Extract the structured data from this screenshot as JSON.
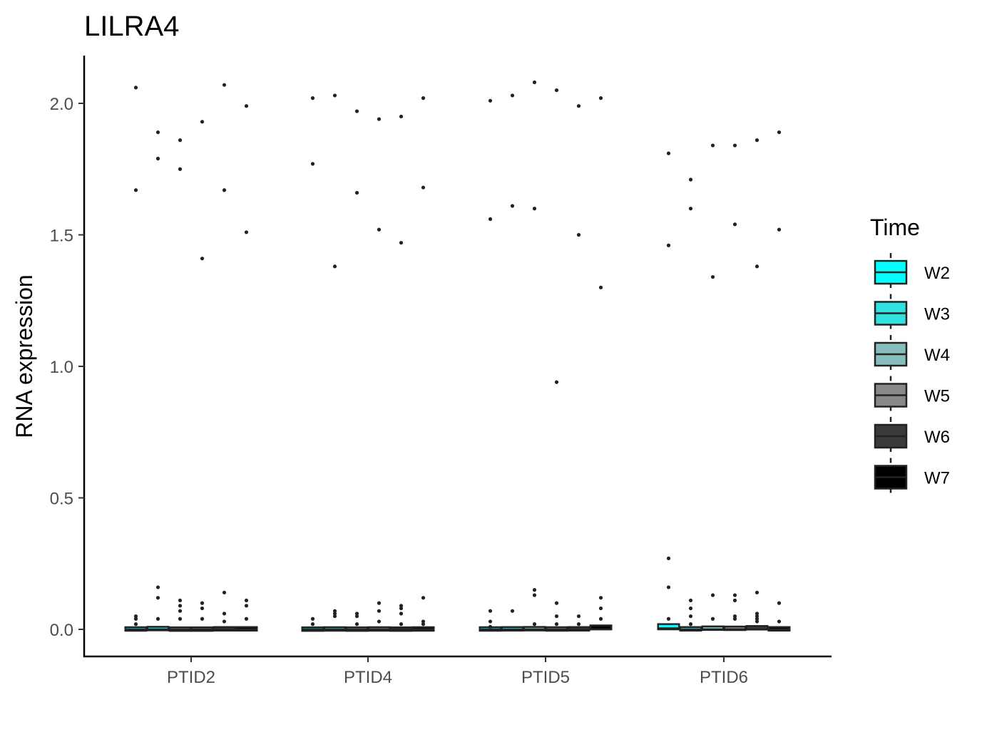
{
  "chart_data": {
    "type": "box",
    "title": "LILRA4",
    "xlabel": "",
    "ylabel": "RNA expression",
    "ylim": [
      -0.1,
      2.2
    ],
    "yticks": [
      0.0,
      0.5,
      1.0,
      1.5,
      2.0
    ],
    "ytick_labels": [
      "0.0",
      "0.5",
      "1.0",
      "1.5",
      "2.0"
    ],
    "categories": [
      "PTID2",
      "PTID4",
      "PTID5",
      "PTID6"
    ],
    "grid": false,
    "legend": {
      "title": "Time",
      "position": "right",
      "entries": [
        "W2",
        "W3",
        "W4",
        "W5",
        "W6",
        "W7"
      ]
    },
    "series": [
      {
        "name": "W2",
        "color": "#00ffff"
      },
      {
        "name": "W3",
        "color": "#33e0e0"
      },
      {
        "name": "W4",
        "color": "#88bdbd"
      },
      {
        "name": "W5",
        "color": "#888888"
      },
      {
        "name": "W6",
        "color": "#3a3a3a"
      },
      {
        "name": "W7",
        "color": "#000000"
      }
    ],
    "boxes": [
      {
        "category": "PTID2",
        "series": "W2",
        "q1": 0.0,
        "median": 0.0,
        "q3": 0.003,
        "outliers": [
          2.06,
          1.67,
          0.05,
          0.04,
          0.02
        ]
      },
      {
        "category": "PTID2",
        "series": "W3",
        "q1": 0.0,
        "median": 0.0,
        "q3": 0.006,
        "outliers": [
          1.89,
          1.79,
          0.16,
          0.12,
          0.04
        ]
      },
      {
        "category": "PTID2",
        "series": "W4",
        "q1": 0.0,
        "median": 0.0,
        "q3": 0.002,
        "outliers": [
          1.86,
          1.75,
          0.11,
          0.09,
          0.07,
          0.04
        ]
      },
      {
        "category": "PTID2",
        "series": "W5",
        "q1": 0.0,
        "median": 0.0,
        "q3": 0.002,
        "outliers": [
          1.93,
          1.41,
          0.1,
          0.08,
          0.04
        ]
      },
      {
        "category": "PTID2",
        "series": "W6",
        "q1": 0.0,
        "median": 0.0,
        "q3": 0.004,
        "outliers": [
          2.07,
          1.67,
          0.14,
          0.06,
          0.03
        ]
      },
      {
        "category": "PTID2",
        "series": "W7",
        "q1": 0.0,
        "median": 0.0,
        "q3": 0.004,
        "outliers": [
          1.99,
          1.51,
          0.11,
          0.09,
          0.04
        ]
      },
      {
        "category": "PTID4",
        "series": "W2",
        "q1": 0.0,
        "median": 0.0,
        "q3": 0.002,
        "outliers": [
          2.02,
          1.77,
          0.04,
          0.02
        ]
      },
      {
        "category": "PTID4",
        "series": "W3",
        "q1": 0.0,
        "median": 0.0,
        "q3": 0.003,
        "outliers": [
          2.03,
          1.38,
          0.07,
          0.06,
          0.05
        ]
      },
      {
        "category": "PTID4",
        "series": "W4",
        "q1": 0.0,
        "median": 0.0,
        "q3": 0.002,
        "outliers": [
          1.97,
          1.66,
          0.06,
          0.05,
          0.02
        ]
      },
      {
        "category": "PTID4",
        "series": "W5",
        "q1": 0.0,
        "median": 0.0,
        "q3": 0.003,
        "outliers": [
          1.94,
          1.52,
          0.1,
          0.07,
          0.03
        ]
      },
      {
        "category": "PTID4",
        "series": "W6",
        "q1": 0.0,
        "median": 0.0,
        "q3": 0.002,
        "outliers": [
          1.95,
          1.47,
          0.09,
          0.08,
          0.06,
          0.02
        ]
      },
      {
        "category": "PTID4",
        "series": "W7",
        "q1": 0.0,
        "median": 0.0,
        "q3": 0.003,
        "outliers": [
          2.02,
          1.68,
          0.12,
          0.03,
          0.02
        ]
      },
      {
        "category": "PTID5",
        "series": "W2",
        "q1": 0.0,
        "median": 0.0,
        "q3": 0.003,
        "outliers": [
          2.01,
          1.56,
          0.07,
          0.03,
          0.01
        ]
      },
      {
        "category": "PTID5",
        "series": "W3",
        "q1": 0.0,
        "median": 0.0,
        "q3": 0.004,
        "outliers": [
          2.03,
          1.61,
          0.07
        ]
      },
      {
        "category": "PTID5",
        "series": "W4",
        "q1": 0.0,
        "median": 0.0,
        "q3": 0.005,
        "outliers": [
          2.08,
          1.6,
          0.15,
          0.13,
          0.02
        ]
      },
      {
        "category": "PTID5",
        "series": "W5",
        "q1": 0.0,
        "median": 0.0,
        "q3": 0.003,
        "outliers": [
          2.05,
          0.94,
          0.1,
          0.05,
          0.02
        ]
      },
      {
        "category": "PTID5",
        "series": "W6",
        "q1": 0.0,
        "median": 0.0,
        "q3": 0.004,
        "outliers": [
          1.99,
          1.5,
          0.05,
          0.02
        ]
      },
      {
        "category": "PTID5",
        "series": "W7",
        "q1": 0.0,
        "median": 0.0,
        "q3": 0.015,
        "outliers": [
          2.02,
          1.3,
          0.12,
          0.08,
          0.04
        ]
      },
      {
        "category": "PTID6",
        "series": "W2",
        "q1": 0.0,
        "median": 0.004,
        "q3": 0.02,
        "outliers": [
          1.81,
          1.46,
          0.27,
          0.16,
          0.04
        ]
      },
      {
        "category": "PTID6",
        "series": "W3",
        "q1": 0.0,
        "median": 0.0,
        "q3": 0.004,
        "outliers": [
          1.71,
          1.6,
          0.11,
          0.08,
          0.05,
          0.02
        ]
      },
      {
        "category": "PTID6",
        "series": "W4",
        "q1": 0.0,
        "median": 0.0,
        "q3": 0.009,
        "outliers": [
          1.84,
          1.34,
          0.13,
          0.04
        ]
      },
      {
        "category": "PTID6",
        "series": "W5",
        "q1": 0.0,
        "median": 0.0,
        "q3": 0.008,
        "outliers": [
          1.84,
          1.54,
          0.13,
          0.11,
          0.05,
          0.04
        ]
      },
      {
        "category": "PTID6",
        "series": "W6",
        "q1": 0.0,
        "median": 0.0,
        "q3": 0.012,
        "outliers": [
          1.86,
          1.38,
          0.14,
          0.06,
          0.05,
          0.04,
          0.03
        ]
      },
      {
        "category": "PTID6",
        "series": "W7",
        "q1": 0.0,
        "median": 0.0,
        "q3": 0.004,
        "outliers": [
          1.89,
          1.52,
          0.1,
          0.03
        ]
      }
    ]
  }
}
